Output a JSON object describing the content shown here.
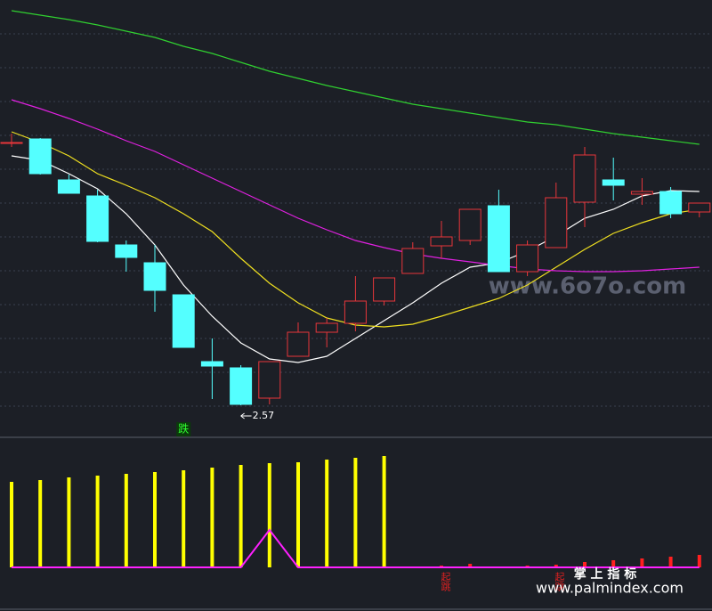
{
  "chart_data": [
    {
      "type": "candlestick",
      "up_color": "#e8363a",
      "down_color": "#54ffff",
      "open": [
        3.16,
        3.168,
        3.076,
        3.04,
        2.93,
        2.89,
        2.818,
        2.668,
        2.654,
        2.586,
        2.68,
        2.734,
        2.754,
        2.804,
        2.866,
        2.928,
        2.94,
        3.018,
        2.87,
        2.924,
        3.026,
        3.076,
        3.044,
        3.05,
        3.004
      ],
      "high": [
        3.18,
        3.17,
        3.088,
        3.054,
        2.94,
        2.93,
        2.818,
        2.72,
        2.66,
        2.668,
        2.756,
        2.766,
        2.86,
        2.856,
        2.936,
        2.984,
        3.01,
        3.054,
        2.94,
        3.07,
        3.15,
        3.126,
        3.08,
        3.06,
        3.024
      ],
      "low": [
        3.15,
        3.088,
        3.046,
        2.936,
        2.87,
        2.78,
        2.7,
        2.584,
        2.57,
        2.572,
        2.68,
        2.7,
        2.736,
        2.794,
        2.866,
        2.9,
        2.93,
        2.87,
        2.86,
        2.924,
        2.97,
        3.03,
        3.02,
        2.99,
        2.992
      ],
      "close": [
        3.16,
        3.09,
        3.046,
        2.938,
        2.902,
        2.828,
        2.7,
        2.658,
        2.572,
        2.668,
        2.734,
        2.754,
        2.804,
        2.856,
        2.922,
        2.948,
        3.01,
        2.87,
        2.93,
        3.036,
        3.132,
        3.064,
        3.05,
        3.0,
        3.024
      ],
      "series": [
        {
          "color": "#ffffff",
          "values": [
            3.13,
            3.12,
            3.09,
            3.056,
            3.0,
            2.93,
            2.84,
            2.77,
            2.71,
            2.674,
            2.666,
            2.68,
            2.72,
            2.76,
            2.8,
            2.844,
            2.88,
            2.89,
            2.916,
            2.95,
            2.99,
            3.01,
            3.04,
            3.052,
            3.05
          ]
        },
        {
          "color": "#f0e020",
          "values": [
            3.184,
            3.16,
            3.13,
            3.09,
            3.064,
            3.036,
            3.0,
            2.96,
            2.9,
            2.844,
            2.8,
            2.766,
            2.75,
            2.746,
            2.752,
            2.77,
            2.79,
            2.81,
            2.84,
            2.88,
            2.92,
            2.956,
            2.98,
            3.0,
            3.01
          ]
        },
        {
          "color": "#e020e0",
          "values": [
            3.256,
            3.236,
            3.214,
            3.19,
            3.164,
            3.14,
            3.11,
            3.08,
            3.05,
            3.02,
            2.99,
            2.964,
            2.94,
            2.924,
            2.91,
            2.9,
            2.892,
            2.884,
            2.876,
            2.872,
            2.87,
            2.87,
            2.872,
            2.876,
            2.88
          ]
        },
        {
          "color": "#30d030",
          "values": [
            3.456,
            3.446,
            3.436,
            3.424,
            3.41,
            3.396,
            3.376,
            3.36,
            3.34,
            3.32,
            3.304,
            3.288,
            3.274,
            3.26,
            3.246,
            3.236,
            3.226,
            3.216,
            3.206,
            3.2,
            3.19,
            3.18,
            3.172,
            3.164,
            3.156
          ]
        }
      ],
      "ylim": [
        2.5,
        3.48
      ],
      "low_annotation": 2.57,
      "signal_down": "跌"
    },
    {
      "type": "bar",
      "series": [
        {
          "color": "#ffff00",
          "values": [
            96,
            98,
            101,
            103,
            105,
            107,
            109,
            112,
            115,
            117,
            118,
            121,
            123,
            125,
            null,
            null,
            null,
            null,
            null,
            null,
            null,
            null,
            null,
            null,
            null
          ]
        },
        {
          "color": "#ff2020",
          "values": [
            null,
            null,
            null,
            null,
            null,
            null,
            null,
            null,
            null,
            null,
            null,
            null,
            null,
            null,
            1,
            2,
            4,
            1,
            2,
            3,
            6,
            8,
            10,
            12,
            14
          ]
        }
      ],
      "line": {
        "color": "#ff20ff",
        "values": [
          0,
          0,
          0,
          0,
          0,
          0,
          0,
          0,
          0,
          42,
          0,
          0,
          0,
          0,
          0,
          0,
          0,
          0,
          0,
          0,
          0,
          0,
          0,
          0,
          0
        ]
      },
      "ylim": [
        0,
        130
      ],
      "signal_up": [
        "起跳",
        "起跳"
      ]
    }
  ],
  "watermarks": [
    "www.6o7o.com",
    "掌 上 指 标",
    "www.palmindex.com"
  ]
}
